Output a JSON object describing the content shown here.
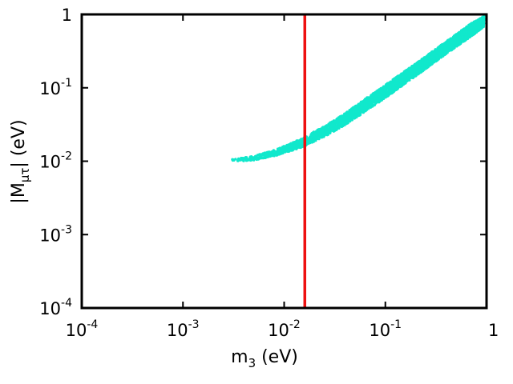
{
  "chart_data": {
    "type": "scatter",
    "title": "",
    "xlabel": {
      "main": "m",
      "sub": "3",
      "unit": " (eV)"
    },
    "ylabel": {
      "pre": "|M",
      "sub": "μτ",
      "post": "| (eV)"
    },
    "xscale": "log",
    "yscale": "log",
    "xlim": [
      0.0001,
      1
    ],
    "ylim": [
      0.0001,
      1
    ],
    "grid": false,
    "x_ticks": [
      {
        "value": 0.0001,
        "base": "10",
        "exp": "-4"
      },
      {
        "value": 0.001,
        "base": "10",
        "exp": "-3"
      },
      {
        "value": 0.01,
        "base": "10",
        "exp": "-2"
      },
      {
        "value": 0.1,
        "base": "10",
        "exp": "-1"
      },
      {
        "value": 1,
        "base": "1",
        "exp": ""
      }
    ],
    "y_ticks": [
      {
        "value": 0.0001,
        "base": "10",
        "exp": "-4"
      },
      {
        "value": 0.001,
        "base": "10",
        "exp": "-3"
      },
      {
        "value": 0.01,
        "base": "10",
        "exp": "-2"
      },
      {
        "value": 0.1,
        "base": "10",
        "exp": "-1"
      },
      {
        "value": 1,
        "base": "1",
        "exp": ""
      }
    ],
    "series": [
      {
        "color": "#11e8cc",
        "band": [
          {
            "x": 0.003,
            "y_low": 0.0098,
            "y_high": 0.0106
          },
          {
            "x": 0.005,
            "y_low": 0.0103,
            "y_high": 0.0118
          },
          {
            "x": 0.008,
            "y_low": 0.0117,
            "y_high": 0.0142
          },
          {
            "x": 0.012,
            "y_low": 0.014,
            "y_high": 0.0178
          },
          {
            "x": 0.016,
            "y_low": 0.016,
            "y_high": 0.0215
          },
          {
            "x": 0.025,
            "y_low": 0.0215,
            "y_high": 0.03
          },
          {
            "x": 0.04,
            "y_low": 0.031,
            "y_high": 0.045
          },
          {
            "x": 0.07,
            "y_low": 0.052,
            "y_high": 0.078
          },
          {
            "x": 0.1,
            "y_low": 0.073,
            "y_high": 0.11
          },
          {
            "x": 0.2,
            "y_low": 0.145,
            "y_high": 0.215
          },
          {
            "x": 0.4,
            "y_low": 0.29,
            "y_high": 0.43
          },
          {
            "x": 0.7,
            "y_low": 0.5,
            "y_high": 0.75
          },
          {
            "x": 0.95,
            "y_low": 0.68,
            "y_high": 0.95
          }
        ]
      }
    ],
    "vertical_lines": [
      {
        "x": 0.016,
        "color": "#ee1111"
      }
    ]
  }
}
